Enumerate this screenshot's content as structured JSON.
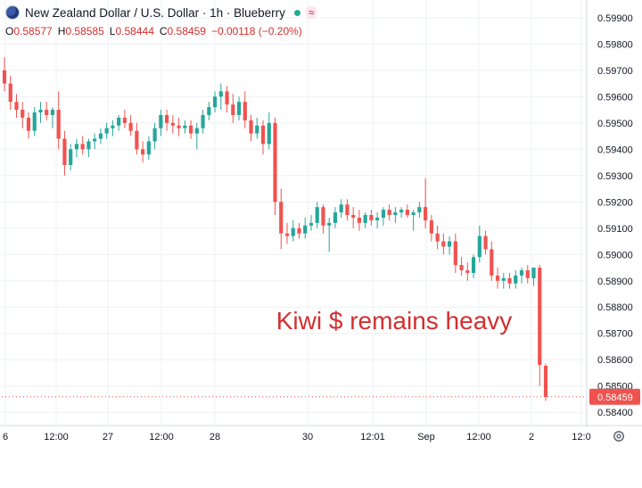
{
  "header": {
    "symbol_title": "New Zealand Dollar / U.S. Dollar · 1h · Blueberry",
    "ohlc": [
      {
        "label": "O",
        "value": "0.58577"
      },
      {
        "label": "H",
        "value": "0.58585"
      },
      {
        "label": "L",
        "value": "0.58444"
      },
      {
        "label": "C",
        "value": "0.58459"
      }
    ],
    "change": "−0.00118 (−0.20%)",
    "icons": [
      "flag-icon",
      "status-dot-icon",
      "wave-indicator-icon"
    ]
  },
  "annotation": "Kiwi $ remains heavy",
  "settings_icon": "gear-icon",
  "colors": {
    "up": "#26a69a",
    "down": "#ef5350",
    "annotation": "#d32f2f",
    "price_label_bg": "#ef5350",
    "grid": "#eef0f4"
  },
  "chart_data": {
    "type": "candlestick",
    "y_axis": {
      "ticks": [
        "0.59900",
        "0.59800",
        "0.59700",
        "0.59600",
        "0.59500",
        "0.59400",
        "0.59300",
        "0.59200",
        "0.59100",
        "0.59000",
        "0.58900",
        "0.58800",
        "0.58700",
        "0.58600",
        "0.58500",
        "0.58400"
      ],
      "range": [
        0.5836,
        0.5993
      ]
    },
    "x_axis": {
      "ticks": [
        "6",
        "12:00",
        "27",
        "12:00",
        "28",
        "30",
        "12:01",
        "Sep",
        "12:00",
        "2",
        "12:0"
      ]
    },
    "current_price_label": "0.58459",
    "candles": [
      {
        "o": 0.597,
        "h": 0.5975,
        "l": 0.5962,
        "c": 0.5965
      },
      {
        "o": 0.5965,
        "h": 0.5968,
        "l": 0.5955,
        "c": 0.5958
      },
      {
        "o": 0.5958,
        "h": 0.5961,
        "l": 0.5952,
        "c": 0.5955
      },
      {
        "o": 0.5955,
        "h": 0.5958,
        "l": 0.5948,
        "c": 0.5952
      },
      {
        "o": 0.5952,
        "h": 0.5954,
        "l": 0.5944,
        "c": 0.5947
      },
      {
        "o": 0.5947,
        "h": 0.5956,
        "l": 0.5945,
        "c": 0.5954
      },
      {
        "o": 0.5954,
        "h": 0.5958,
        "l": 0.595,
        "c": 0.5955
      },
      {
        "o": 0.5955,
        "h": 0.5958,
        "l": 0.5951,
        "c": 0.5953
      },
      {
        "o": 0.5953,
        "h": 0.5956,
        "l": 0.5948,
        "c": 0.5955
      },
      {
        "o": 0.5955,
        "h": 0.5962,
        "l": 0.594,
        "c": 0.5944
      },
      {
        "o": 0.5944,
        "h": 0.5947,
        "l": 0.593,
        "c": 0.5934
      },
      {
        "o": 0.5934,
        "h": 0.5942,
        "l": 0.5932,
        "c": 0.594
      },
      {
        "o": 0.594,
        "h": 0.5944,
        "l": 0.5937,
        "c": 0.5942
      },
      {
        "o": 0.5942,
        "h": 0.5945,
        "l": 0.5938,
        "c": 0.594
      },
      {
        "o": 0.594,
        "h": 0.5944,
        "l": 0.5937,
        "c": 0.5943
      },
      {
        "o": 0.5943,
        "h": 0.5946,
        "l": 0.594,
        "c": 0.5944
      },
      {
        "o": 0.5944,
        "h": 0.5948,
        "l": 0.5942,
        "c": 0.5946
      },
      {
        "o": 0.5946,
        "h": 0.595,
        "l": 0.5944,
        "c": 0.5948
      },
      {
        "o": 0.5948,
        "h": 0.5951,
        "l": 0.5945,
        "c": 0.5949
      },
      {
        "o": 0.5949,
        "h": 0.5953,
        "l": 0.5947,
        "c": 0.5952
      },
      {
        "o": 0.5952,
        "h": 0.5955,
        "l": 0.5948,
        "c": 0.595
      },
      {
        "o": 0.595,
        "h": 0.5953,
        "l": 0.5945,
        "c": 0.5947
      },
      {
        "o": 0.5947,
        "h": 0.595,
        "l": 0.5938,
        "c": 0.594
      },
      {
        "o": 0.594,
        "h": 0.5943,
        "l": 0.5935,
        "c": 0.5938
      },
      {
        "o": 0.5938,
        "h": 0.5945,
        "l": 0.5936,
        "c": 0.5943
      },
      {
        "o": 0.5943,
        "h": 0.595,
        "l": 0.594,
        "c": 0.5948
      },
      {
        "o": 0.5948,
        "h": 0.5955,
        "l": 0.5945,
        "c": 0.5953
      },
      {
        "o": 0.5953,
        "h": 0.5955,
        "l": 0.5947,
        "c": 0.595
      },
      {
        "o": 0.595,
        "h": 0.5953,
        "l": 0.5946,
        "c": 0.5949
      },
      {
        "o": 0.5949,
        "h": 0.5952,
        "l": 0.5945,
        "c": 0.5948
      },
      {
        "o": 0.5948,
        "h": 0.5951,
        "l": 0.5946,
        "c": 0.5949
      },
      {
        "o": 0.5949,
        "h": 0.5951,
        "l": 0.5944,
        "c": 0.5946
      },
      {
        "o": 0.5946,
        "h": 0.595,
        "l": 0.594,
        "c": 0.5948
      },
      {
        "o": 0.5948,
        "h": 0.5955,
        "l": 0.5946,
        "c": 0.5953
      },
      {
        "o": 0.5953,
        "h": 0.5958,
        "l": 0.5951,
        "c": 0.5956
      },
      {
        "o": 0.5956,
        "h": 0.5962,
        "l": 0.5954,
        "c": 0.596
      },
      {
        "o": 0.596,
        "h": 0.5965,
        "l": 0.5955,
        "c": 0.5962
      },
      {
        "o": 0.5962,
        "h": 0.5964,
        "l": 0.5954,
        "c": 0.5957
      },
      {
        "o": 0.5957,
        "h": 0.5961,
        "l": 0.595,
        "c": 0.5953
      },
      {
        "o": 0.5953,
        "h": 0.596,
        "l": 0.5951,
        "c": 0.5958
      },
      {
        "o": 0.5958,
        "h": 0.5962,
        "l": 0.5948,
        "c": 0.5951
      },
      {
        "o": 0.5951,
        "h": 0.5953,
        "l": 0.5943,
        "c": 0.5946
      },
      {
        "o": 0.5946,
        "h": 0.5952,
        "l": 0.5944,
        "c": 0.5949
      },
      {
        "o": 0.5949,
        "h": 0.5951,
        "l": 0.5938,
        "c": 0.5942
      },
      {
        "o": 0.5942,
        "h": 0.5954,
        "l": 0.594,
        "c": 0.595
      },
      {
        "o": 0.595,
        "h": 0.5952,
        "l": 0.5915,
        "c": 0.592
      },
      {
        "o": 0.592,
        "h": 0.5925,
        "l": 0.5902,
        "c": 0.5908
      },
      {
        "o": 0.5908,
        "h": 0.5912,
        "l": 0.5904,
        "c": 0.5907
      },
      {
        "o": 0.5907,
        "h": 0.5913,
        "l": 0.5905,
        "c": 0.591
      },
      {
        "o": 0.591,
        "h": 0.5912,
        "l": 0.5906,
        "c": 0.5908
      },
      {
        "o": 0.5908,
        "h": 0.5914,
        "l": 0.5906,
        "c": 0.5911
      },
      {
        "o": 0.5911,
        "h": 0.5915,
        "l": 0.5909,
        "c": 0.5912
      },
      {
        "o": 0.5912,
        "h": 0.592,
        "l": 0.591,
        "c": 0.5918
      },
      {
        "o": 0.5918,
        "h": 0.5919,
        "l": 0.5908,
        "c": 0.5911
      },
      {
        "o": 0.5911,
        "h": 0.5914,
        "l": 0.5901,
        "c": 0.5912
      },
      {
        "o": 0.5912,
        "h": 0.5918,
        "l": 0.591,
        "c": 0.5916
      },
      {
        "o": 0.5916,
        "h": 0.5921,
        "l": 0.5914,
        "c": 0.5919
      },
      {
        "o": 0.5919,
        "h": 0.5921,
        "l": 0.5913,
        "c": 0.5915
      },
      {
        "o": 0.5915,
        "h": 0.5918,
        "l": 0.591,
        "c": 0.5914
      },
      {
        "o": 0.5914,
        "h": 0.5917,
        "l": 0.5909,
        "c": 0.5912
      },
      {
        "o": 0.5912,
        "h": 0.5916,
        "l": 0.591,
        "c": 0.5915
      },
      {
        "o": 0.5915,
        "h": 0.5917,
        "l": 0.5911,
        "c": 0.5913
      },
      {
        "o": 0.5913,
        "h": 0.5916,
        "l": 0.591,
        "c": 0.5914
      },
      {
        "o": 0.5914,
        "h": 0.5918,
        "l": 0.5911,
        "c": 0.5917
      },
      {
        "o": 0.5917,
        "h": 0.5919,
        "l": 0.5913,
        "c": 0.5915
      },
      {
        "o": 0.5915,
        "h": 0.5918,
        "l": 0.5912,
        "c": 0.5916
      },
      {
        "o": 0.5916,
        "h": 0.5918,
        "l": 0.5914,
        "c": 0.5917
      },
      {
        "o": 0.5917,
        "h": 0.5919,
        "l": 0.5914,
        "c": 0.5915
      },
      {
        "o": 0.5915,
        "h": 0.5917,
        "l": 0.5909,
        "c": 0.5916
      },
      {
        "o": 0.5916,
        "h": 0.592,
        "l": 0.5914,
        "c": 0.5918
      },
      {
        "o": 0.5918,
        "h": 0.5929,
        "l": 0.591,
        "c": 0.5913
      },
      {
        "o": 0.5913,
        "h": 0.5915,
        "l": 0.5905,
        "c": 0.5908
      },
      {
        "o": 0.5908,
        "h": 0.5911,
        "l": 0.5902,
        "c": 0.5905
      },
      {
        "o": 0.5905,
        "h": 0.5908,
        "l": 0.59,
        "c": 0.5903
      },
      {
        "o": 0.5903,
        "h": 0.5907,
        "l": 0.59,
        "c": 0.5905
      },
      {
        "o": 0.5905,
        "h": 0.5908,
        "l": 0.5893,
        "c": 0.5896
      },
      {
        "o": 0.5896,
        "h": 0.5899,
        "l": 0.5892,
        "c": 0.5894
      },
      {
        "o": 0.5894,
        "h": 0.5897,
        "l": 0.589,
        "c": 0.5893
      },
      {
        "o": 0.5893,
        "h": 0.59,
        "l": 0.5891,
        "c": 0.5899
      },
      {
        "o": 0.5899,
        "h": 0.5911,
        "l": 0.5897,
        "c": 0.5907
      },
      {
        "o": 0.5907,
        "h": 0.5909,
        "l": 0.59,
        "c": 0.5902
      },
      {
        "o": 0.5902,
        "h": 0.5905,
        "l": 0.589,
        "c": 0.5892
      },
      {
        "o": 0.5892,
        "h": 0.5895,
        "l": 0.5887,
        "c": 0.589
      },
      {
        "o": 0.589,
        "h": 0.5893,
        "l": 0.5887,
        "c": 0.5891
      },
      {
        "o": 0.5891,
        "h": 0.5893,
        "l": 0.5887,
        "c": 0.5889
      },
      {
        "o": 0.5889,
        "h": 0.5894,
        "l": 0.5887,
        "c": 0.5892
      },
      {
        "o": 0.5892,
        "h": 0.5895,
        "l": 0.5889,
        "c": 0.5894
      },
      {
        "o": 0.5894,
        "h": 0.5896,
        "l": 0.5889,
        "c": 0.5891
      },
      {
        "o": 0.5891,
        "h": 0.5895,
        "l": 0.5888,
        "c": 0.5895
      },
      {
        "o": 0.5895,
        "h": 0.5896,
        "l": 0.585,
        "c": 0.5858
      },
      {
        "o": 0.58577,
        "h": 0.58585,
        "l": 0.58444,
        "c": 0.58459
      }
    ]
  }
}
